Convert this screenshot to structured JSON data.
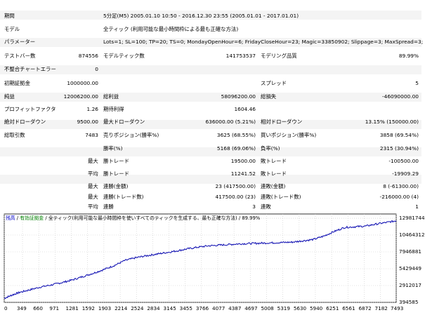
{
  "settings": {
    "period_label": "期間",
    "period_value": "5分足(M5) 2005.01.10 10:50 - 2016.12.30 23:55 (2005.01.01 - 2017.01.01)",
    "model_label": "モデル",
    "model_value": "全ティック (利用可能な最小時間枠による最も正確な方法)",
    "params_label": "パラメーター",
    "params_value": "Lots=1; SL=100; TP=20; TS=0; MondayOpenHour=6; FridayCloseHour=23; Magic=33850902; Slippage=3; MaxSpread=3;"
  },
  "stats": {
    "test_bars_label": "テストバー数",
    "test_bars": "874556",
    "model_ticks_label": "モデルティック数",
    "model_ticks": "141753537",
    "model_quality_label": "モデリング品質",
    "model_quality": "89.99%",
    "mismatch_label": "不整合チャートエラー",
    "mismatch": "0",
    "initial_deposit_label": "初期証拠金",
    "initial_deposit": "1000000.00",
    "spread_label": "スプレッド",
    "spread": "5",
    "net_profit_label": "純益",
    "net_profit": "12006200.00",
    "gross_profit_label": "総利益",
    "gross_profit": "58096200.00",
    "gross_loss_label": "総損失",
    "gross_loss": "-46090000.00",
    "profit_factor_label": "プロフィットファクタ",
    "profit_factor": "1.26",
    "expected_payoff_label": "期待利得",
    "expected_payoff": "1604.46",
    "abs_dd_label": "絶対ドローダウン",
    "abs_dd": "9500.00",
    "max_dd_label": "最大ドローダウン",
    "max_dd": "636000.00 (5.21%)",
    "rel_dd_label": "相対ドローダウン",
    "rel_dd": "13.15% (150000.00)",
    "total_trades_label": "総取引数",
    "total_trades": "7483",
    "short_label": "売りポジション(勝率%)",
    "short": "3625 (68.55%)",
    "long_label": "買いポジション(勝率%)",
    "long": "3858 (69.54%)",
    "win_label": "勝率(%)",
    "win": "5168 (69.06%)",
    "loss_label": "負率(%)",
    "loss": "2315 (30.94%)",
    "max_label": "最大",
    "avg_label": "平均",
    "max_win_label": "勝トレード",
    "max_win": "19500.00",
    "max_loss_label": "敗トレード",
    "max_loss": "-100500.00",
    "avg_win_label": "勝トレード",
    "avg_win": "11241.52",
    "avg_loss_label": "敗トレード",
    "avg_loss": "-19909.29",
    "consec_wins_label": "連勝(金額)",
    "consec_wins": "23 (417500.00)",
    "consec_losses_label": "連敗(金額)",
    "consec_losses": "8 (-61300.00)",
    "consec_profit_label": "連勝(トレード数)",
    "consec_profit": "417500.00 (23)",
    "consec_loss_label": "連敗(トレード数)",
    "consec_loss": "-216000.00 (4)",
    "avg_consec_wins_label": "連勝",
    "avg_consec_wins": "3",
    "avg_consec_losses_label": "連敗",
    "avg_consec_losses": "1"
  },
  "chart_header": {
    "balance": "残高",
    "sep": "/",
    "equity": "有効証拠金",
    "sep2": "/",
    "model": "全ティック(利用可能な最小時間枠を使いすべてのティックを生成する、最も正確な方法)",
    "sep3": "/",
    "quality": "89.99%"
  },
  "colors": {
    "line": "#1616b4",
    "grid": "#c8c8c8",
    "header_balance": "#0000cc",
    "header_equity": "#008000"
  },
  "chart_data": {
    "type": "line",
    "x_ticks": [
      "0",
      "349",
      "660",
      "971",
      "1281",
      "1592",
      "1903",
      "2214",
      "2524",
      "2834",
      "3145",
      "3455",
      "3766",
      "4077",
      "4387",
      "4697",
      "5008",
      "5319",
      "5630",
      "5940",
      "6251",
      "6561",
      "6872",
      "7182",
      "7493"
    ],
    "y_ticks": [
      "12981744",
      "10464312",
      "7946881",
      "5429449",
      "2912017",
      "394585"
    ],
    "ylim": [
      394585,
      13612602
    ],
    "xlim": [
      0,
      7483
    ],
    "series": [
      {
        "x": [
          0,
          150,
          300,
          500,
          700,
          900,
          1100,
          1300,
          1500,
          1700,
          1900,
          2100,
          2300,
          2500,
          2700,
          2900,
          3100,
          3300,
          3500,
          3700,
          3900,
          4100,
          4300,
          4500,
          4700,
          4900,
          5100,
          5300,
          5500,
          5700,
          5900,
          6100,
          6300,
          6500,
          6700,
          6900,
          7100,
          7300,
          7483
        ],
        "y": [
          1000000,
          1500000,
          1900000,
          2300000,
          2700000,
          3000000,
          3350000,
          3750000,
          4250000,
          4750000,
          5300000,
          5900000,
          6650000,
          7050000,
          7350000,
          7600000,
          7850000,
          8100000,
          8400000,
          8650000,
          8850000,
          8950000,
          9050000,
          9150000,
          9200000,
          9250000,
          9300000,
          9350000,
          9400000,
          9600000,
          9800000,
          10300000,
          11000000,
          11600000,
          11700000,
          11800000,
          12100000,
          12350000,
          12600000
        ]
      }
    ]
  }
}
